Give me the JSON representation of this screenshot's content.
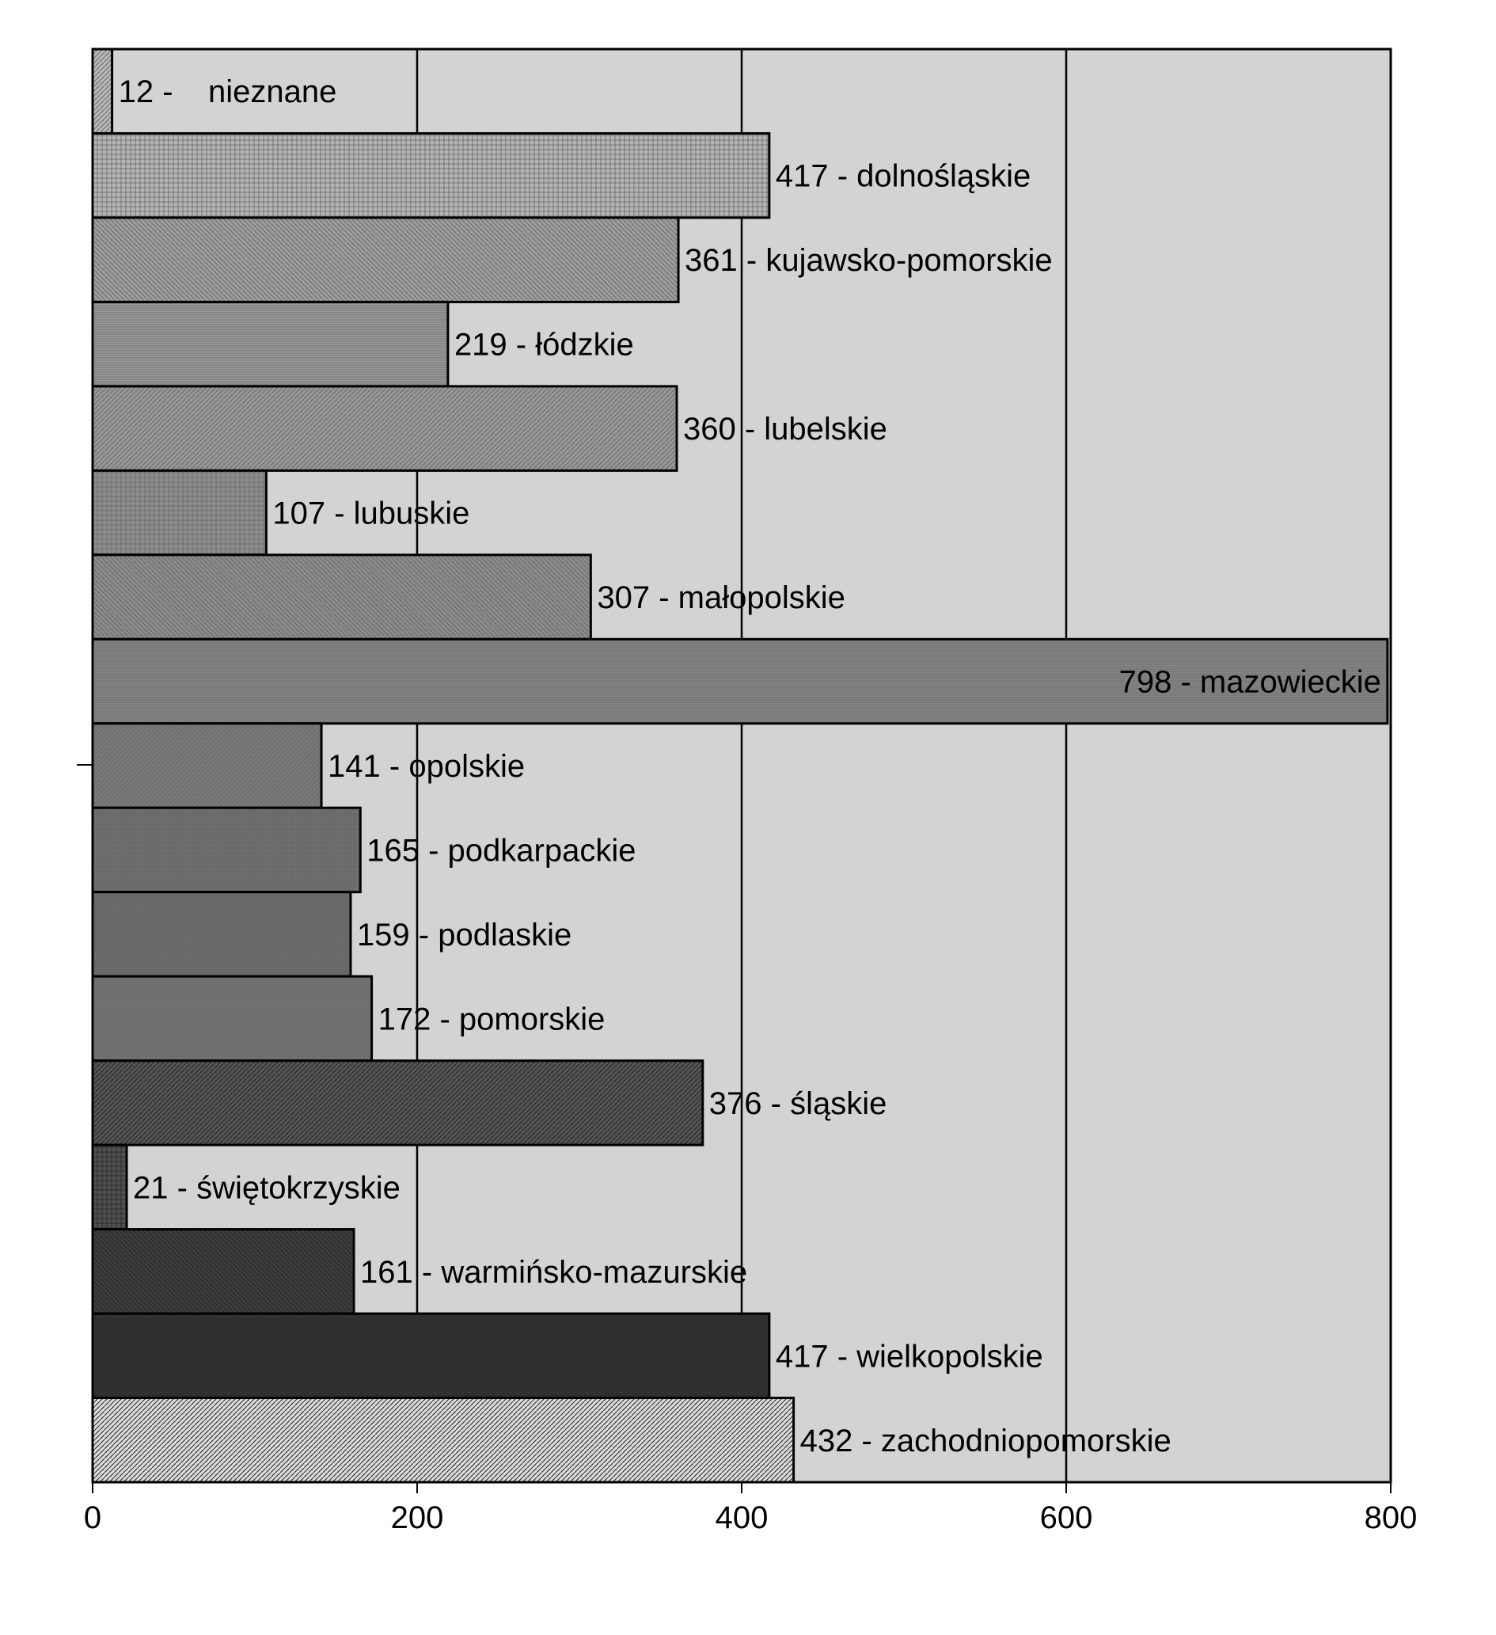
{
  "chart_data": {
    "type": "bar",
    "orientation": "horizontal",
    "title": "",
    "xlabel": "",
    "ylabel": "",
    "xlim": [
      0,
      800
    ],
    "xticks": [
      0,
      200,
      400,
      600,
      800
    ],
    "grid": true,
    "legend": "none",
    "categories": [
      "nieznane",
      "dolnośląskie",
      "kujawsko-pomorskie",
      "łódzkie",
      "lubelskie",
      "lubuskie",
      "małopolskie",
      "mazowieckie",
      "opolskie",
      "podkarpackie",
      "podlaskie",
      "pomorskie",
      "śląskie",
      "świętokrzyskie",
      "warmińsko-mazurskie",
      "wielkopolskie",
      "zachodniopomorskie"
    ],
    "values": [
      12,
      417,
      361,
      219,
      360,
      107,
      307,
      798,
      141,
      165,
      159,
      172,
      376,
      21,
      161,
      417,
      432
    ],
    "labels": [
      "12 -    nieznane",
      "417 - dolnośląskie",
      "361 - kujawsko-pomorskie",
      "219 - łódzkie",
      "360 - lubelskie",
      "107 - lubuskie",
      "307 - małopolskie",
      "798 - mazowieckie",
      "141 - opolskie",
      "165 - podkarpackie",
      "159 - podlaskie",
      "172 - pomorskie",
      "376 - śląskie",
      "21 - świętokrzyskie",
      "161 - warmińsko-mazurskie",
      "417 - wielkopolskie",
      "432 - zachodniopomorskie"
    ],
    "colors": {
      "plot_background": "#d3d3d3",
      "bar_fills": [
        "#b8b8b8",
        "#b4b4b4",
        "#9e9e9e",
        "#9a9a9a",
        "#989898",
        "#8e8e8e",
        "#8c8c8c",
        "#858585",
        "#797979",
        "#6e6e6e",
        "#6a6a6a",
        "#737373",
        "#555555",
        "#505050",
        "#3e3e3e",
        "#333333",
        "#dadada"
      ]
    }
  }
}
